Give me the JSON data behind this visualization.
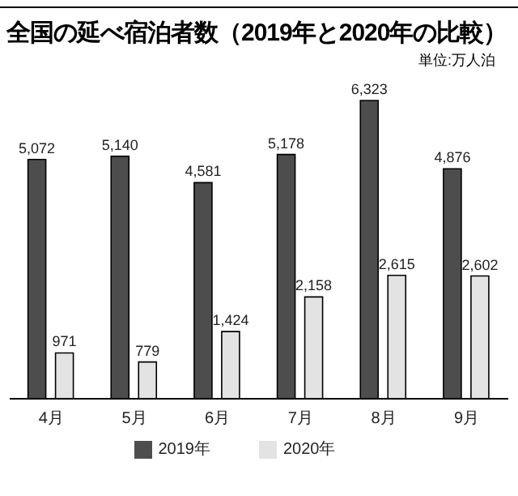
{
  "chart_data": {
    "type": "bar",
    "title": "全国の延べ宿泊者数（2019年と2020年の比較）",
    "subtitle": "単位:万人泊",
    "categories": [
      "4月",
      "5月",
      "6月",
      "7月",
      "8月",
      "9月"
    ],
    "series": [
      {
        "name": "2019年",
        "color": "#4d4d4d",
        "values": [
          5072,
          5140,
          4581,
          5178,
          6323,
          4876
        ],
        "value_labels": [
          "5,072",
          "5,140",
          "4,581",
          "5,178",
          "6,323",
          "4,876"
        ]
      },
      {
        "name": "2020年",
        "color": "#e3e3e3",
        "values": [
          971,
          779,
          1424,
          2158,
          2615,
          2602
        ],
        "value_labels": [
          "971",
          "779",
          "1,424",
          "2,158",
          "2,615",
          "2,602"
        ]
      }
    ],
    "legend": "bottom",
    "grid": false
  }
}
